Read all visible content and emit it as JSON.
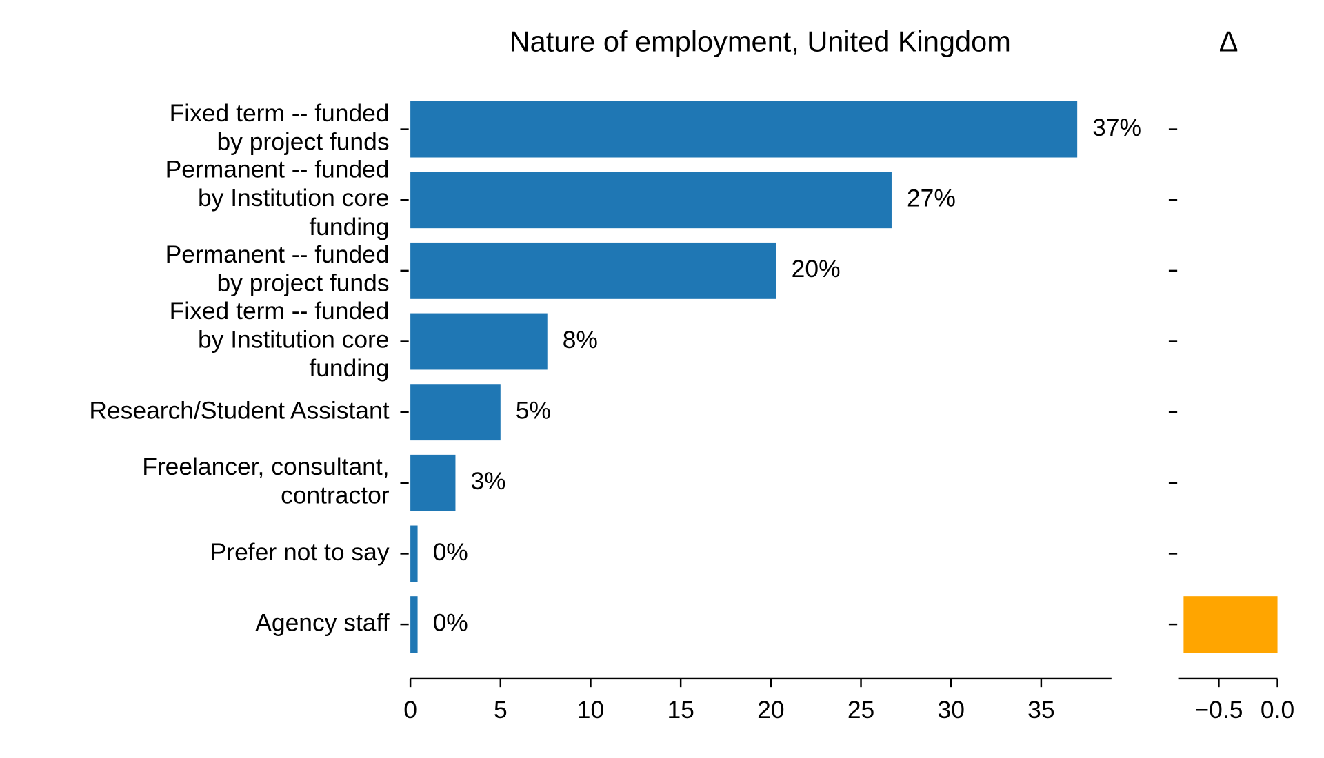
{
  "chart_data": [
    {
      "type": "hbar",
      "title": "Nature of employment, United Kingdom",
      "categories": [
        "Fixed term -- funded\nby project funds",
        "Permanent -- funded\nby Institution core\nfunding",
        "Permanent -- funded\nby project funds",
        "Fixed term -- funded\nby Institution core\nfunding",
        "Research/Student Assistant",
        "Freelancer, consultant,\ncontractor",
        "Prefer not to say",
        "Agency staff"
      ],
      "values": [
        37,
        26.7,
        20.3,
        7.6,
        5.0,
        2.5,
        0.4,
        0.4
      ],
      "value_labels": [
        "37%",
        "27%",
        "20%",
        "8%",
        "5%",
        "3%",
        "0%",
        "0%"
      ],
      "color": "#1f77b4",
      "xlim": [
        0,
        38.9
      ],
      "xticks": [
        0,
        5,
        10,
        15,
        20,
        25,
        30,
        35
      ]
    },
    {
      "type": "hbar",
      "title": "Δ",
      "values": [
        null,
        null,
        null,
        null,
        null,
        null,
        null,
        -0.8
      ],
      "color": "#ffa500",
      "xlim": [
        -0.84,
        0
      ],
      "xticks": [
        {
          "value": -0.5,
          "label": "−0.5"
        },
        {
          "value": 0,
          "label": "0.0"
        }
      ]
    }
  ]
}
